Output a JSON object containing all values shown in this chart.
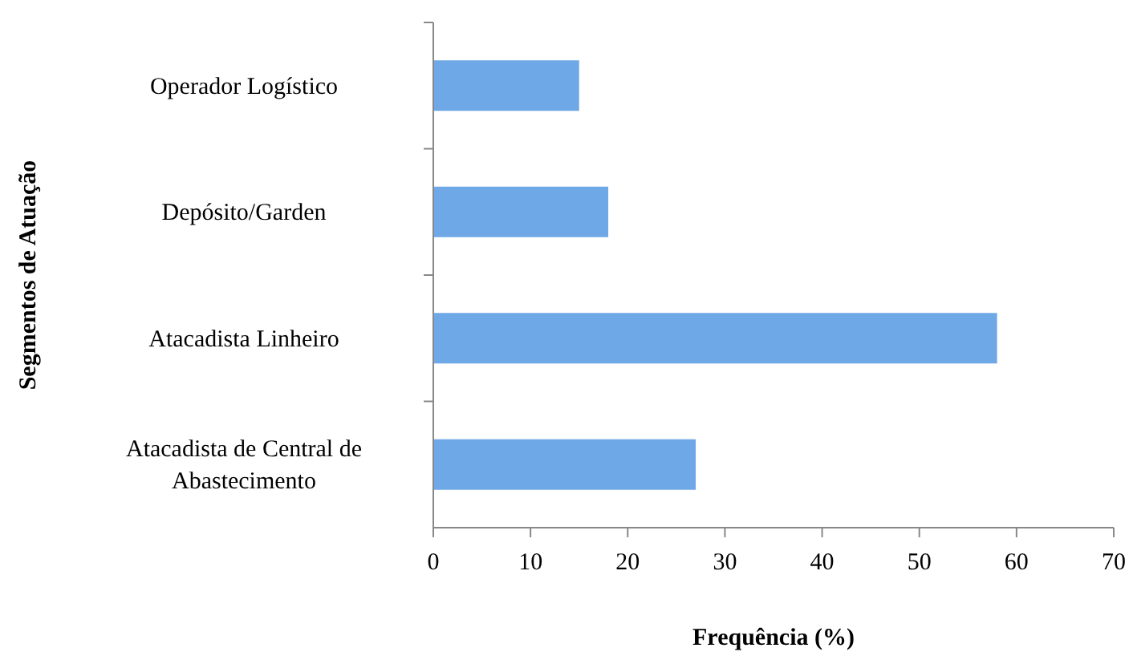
{
  "chart_data": {
    "type": "bar",
    "orientation": "horizontal",
    "categories": [
      "Operador Logístico",
      "Depósito/Garden",
      "Atacadista Linheiro",
      "Atacadista de Central de Abastecimento"
    ],
    "values": [
      15,
      18,
      58,
      27
    ],
    "color": "#6fa8e6",
    "xlim": [
      0,
      70
    ],
    "xticks": [
      0,
      10,
      20,
      30,
      40,
      50,
      60,
      70
    ],
    "xlabel": "Frequência (%)",
    "ylabel": "Segmentos de Atuação",
    "grid": false
  }
}
